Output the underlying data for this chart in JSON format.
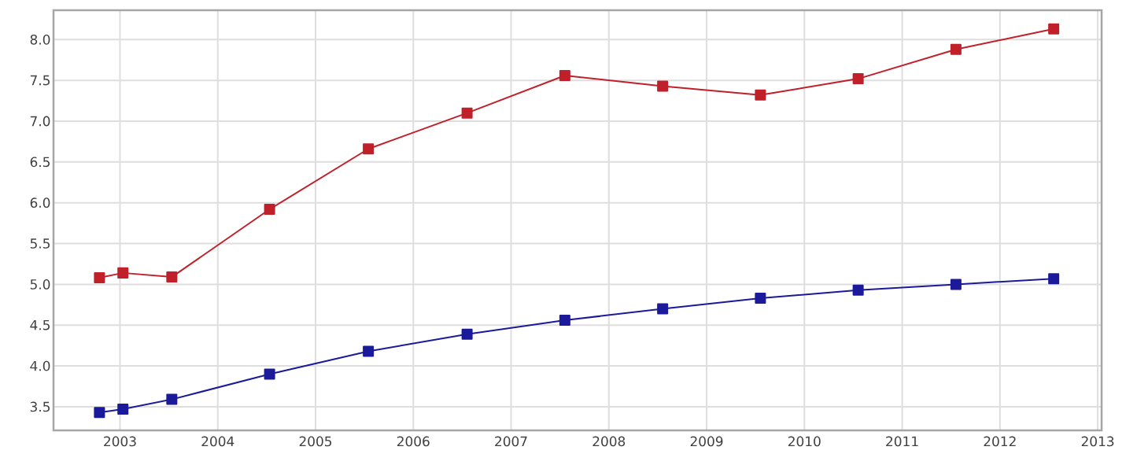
{
  "chart_data": {
    "type": "line",
    "x": [
      2002.79,
      2003.03,
      2003.53,
      2004.53,
      2005.54,
      2006.55,
      2007.55,
      2008.55,
      2009.55,
      2010.55,
      2011.55,
      2012.55
    ],
    "series": [
      {
        "color": "#c0202a",
        "values": [
          5.08,
          5.14,
          5.09,
          5.92,
          6.66,
          7.1,
          7.56,
          7.43,
          7.32,
          7.52,
          7.88,
          8.13
        ]
      },
      {
        "color": "#1a1a9a",
        "values": [
          3.43,
          3.47,
          3.59,
          3.9,
          4.18,
          4.39,
          4.56,
          4.7,
          4.83,
          4.93,
          5.0,
          5.07
        ]
      }
    ],
    "xlim": [
      2002.32,
      2013.04
    ],
    "ylim": [
      3.21,
      8.36
    ],
    "xticks": [
      2003,
      2004,
      2005,
      2006,
      2007,
      2008,
      2009,
      2010,
      2011,
      2012,
      2013
    ],
    "yticks": [
      {
        "value": 3.5,
        "label": "3.5"
      },
      {
        "value": 4,
        "label": "4.0"
      },
      {
        "value": 4.5,
        "label": "4.5"
      },
      {
        "value": 5,
        "label": "5.0"
      },
      {
        "value": 5.5,
        "label": "5.5"
      },
      {
        "value": 6,
        "label": "6.0"
      },
      {
        "value": 6.5,
        "label": "6.5"
      },
      {
        "value": 7,
        "label": "7.0"
      },
      {
        "value": 7.5,
        "label": "7.5"
      },
      {
        "value": 8,
        "label": "8.0"
      }
    ],
    "grid": true,
    "marker": "square",
    "line_style": "solid"
  }
}
